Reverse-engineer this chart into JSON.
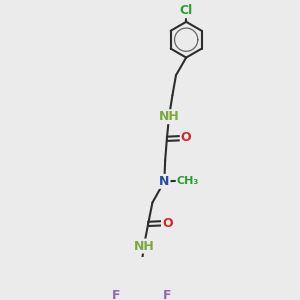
{
  "bg_color": "#ebebeb",
  "atom_colors": {
    "C": "#2ca02c",
    "N": "#1f4fa0",
    "O": "#d62728",
    "F": "#9467bd",
    "Cl": "#2ca02c",
    "H_N": "#7fbc41"
  },
  "bond_color": "#2d2d2d",
  "bond_width": 1.5,
  "font_size_atom": 9,
  "font_size_small": 8,
  "xlim": [
    -2.2,
    2.2
  ],
  "ylim": [
    -3.0,
    3.0
  ]
}
